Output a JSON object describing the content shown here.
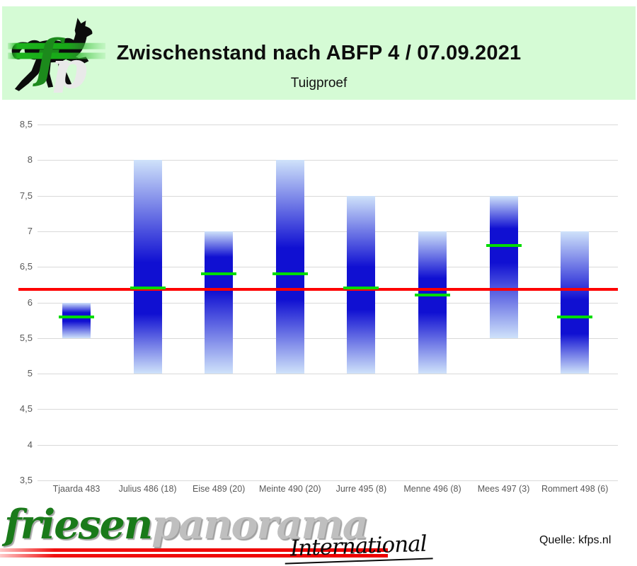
{
  "header": {
    "title": "Zwischenstand nach ABFP 4 / 07.09.2021",
    "subtitle": "Tuigproef",
    "logo_f": "f",
    "logo_p": "p"
  },
  "footer": {
    "brand_green": "friesen",
    "brand_gray": "panorama",
    "brand_script": "International",
    "source": "Quelle: kfps.nl"
  },
  "colors": {
    "banner_bg": "#d5fbd5",
    "bar_dark": "#1010d2",
    "bar_light": "#cfe2fa",
    "marker_green": "#00dc00",
    "reference_red": "#fe0000",
    "gridline": "#d9d9d9",
    "axis_text": "#595959",
    "brand_green": "#1a7a1a",
    "brand_gray": "#bfbfbf"
  },
  "chart_data": {
    "type": "bar",
    "subtype": "floating-range-bars-with-markers",
    "title": "Zwischenstand nach ABFP 4 / 07.09.2021",
    "subtitle": "Tuigproef",
    "xlabel": "",
    "ylabel": "",
    "ylim": [
      3.5,
      8.5
    ],
    "grid": true,
    "legend": false,
    "y_ticks": [
      {
        "value": 8.5,
        "label": "8,5"
      },
      {
        "value": 8.0,
        "label": "8"
      },
      {
        "value": 7.5,
        "label": "7,5"
      },
      {
        "value": 7.0,
        "label": "7"
      },
      {
        "value": 6.5,
        "label": "6,5"
      },
      {
        "value": 6.0,
        "label": "6"
      },
      {
        "value": 5.5,
        "label": "5,5"
      },
      {
        "value": 5.0,
        "label": "5"
      },
      {
        "value": 4.5,
        "label": "4,5"
      },
      {
        "value": 4.0,
        "label": "4"
      },
      {
        "value": 3.5,
        "label": "3,5"
      }
    ],
    "reference_line": {
      "value": 6.18,
      "color": "#fe0000"
    },
    "categories": [
      {
        "label": "Tjaarda 483",
        "low": 5.5,
        "high": 6.0,
        "marker": 5.8
      },
      {
        "label": "Julius 486 (18)",
        "low": 5.0,
        "high": 8.0,
        "marker": 6.2
      },
      {
        "label": "Eise 489 (20)",
        "low": 5.0,
        "high": 7.0,
        "marker": 6.4
      },
      {
        "label": "Meinte 490 (20)",
        "low": 5.0,
        "high": 8.0,
        "marker": 6.4
      },
      {
        "label": "Jurre 495 (8)",
        "low": 5.0,
        "high": 7.5,
        "marker": 6.2
      },
      {
        "label": "Menne 496 (8)",
        "low": 5.0,
        "high": 7.0,
        "marker": 6.1
      },
      {
        "label": "Mees 497 (3)",
        "low": 5.5,
        "high": 7.5,
        "marker": 6.8
      },
      {
        "label": "Rommert 498 (6)",
        "low": 5.0,
        "high": 7.0,
        "marker": 5.8
      }
    ]
  }
}
